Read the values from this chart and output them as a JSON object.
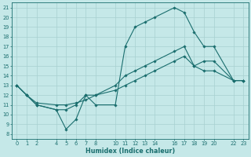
{
  "xlabel": "Humidex (Indice chaleur)",
  "bg_color": "#c5e8e8",
  "line_color": "#1a6e6e",
  "grid_color": "#a8d0d0",
  "xlim": [
    -0.5,
    23.5
  ],
  "ylim": [
    7.5,
    21.5
  ],
  "xticks": [
    0,
    1,
    2,
    4,
    5,
    6,
    7,
    8,
    10,
    11,
    12,
    13,
    14,
    16,
    17,
    18,
    19,
    20,
    22,
    23
  ],
  "yticks": [
    8,
    9,
    10,
    11,
    12,
    13,
    14,
    15,
    16,
    17,
    18,
    19,
    20,
    21
  ],
  "line1_x": [
    0,
    1,
    2,
    4,
    5,
    6,
    7,
    8,
    10,
    11,
    12,
    13,
    14,
    16,
    17,
    18,
    19,
    20,
    22,
    23
  ],
  "line1_y": [
    13.0,
    12.0,
    11.0,
    10.5,
    8.5,
    9.5,
    12.0,
    11.0,
    11.0,
    17.0,
    19.0,
    19.5,
    20.0,
    21.0,
    20.5,
    18.5,
    17.0,
    17.0,
    13.5,
    13.5
  ],
  "line2_x": [
    0,
    1,
    2,
    4,
    5,
    6,
    7,
    8,
    10,
    11,
    12,
    13,
    14,
    16,
    17,
    18,
    19,
    20,
    22,
    23
  ],
  "line2_y": [
    13.0,
    12.0,
    11.0,
    10.5,
    10.5,
    11.0,
    12.0,
    12.0,
    13.0,
    14.0,
    14.5,
    15.0,
    15.5,
    16.5,
    17.0,
    15.0,
    15.5,
    15.5,
    13.5,
    13.5
  ],
  "line3_x": [
    0,
    1,
    2,
    4,
    5,
    6,
    7,
    8,
    10,
    11,
    12,
    13,
    14,
    16,
    17,
    18,
    19,
    20,
    22,
    23
  ],
  "line3_y": [
    13.0,
    12.0,
    11.2,
    11.0,
    11.0,
    11.2,
    11.5,
    12.0,
    12.5,
    13.0,
    13.5,
    14.0,
    14.5,
    15.5,
    16.0,
    15.0,
    14.5,
    14.5,
    13.5,
    13.5
  ],
  "figsize": [
    3.2,
    2.0
  ],
  "dpi": 100
}
